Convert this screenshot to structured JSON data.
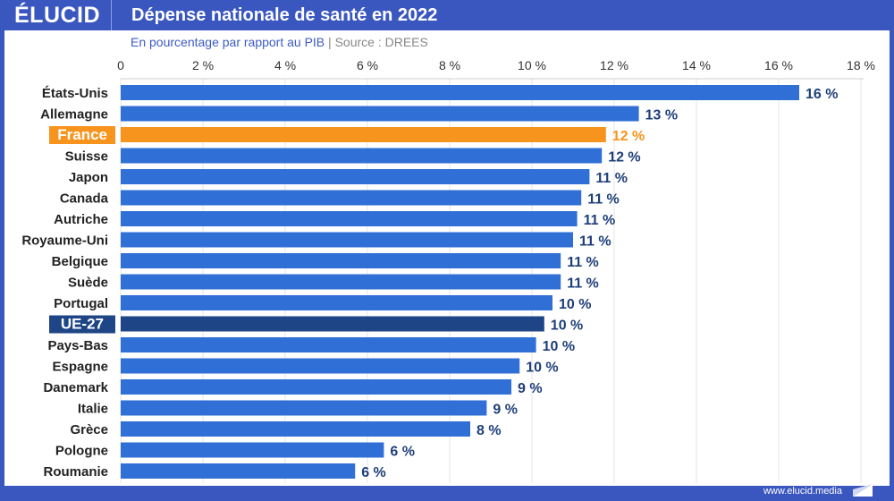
{
  "header": {
    "logo": "ÉLUCID",
    "title": "Dépense nationale de santé en 2022"
  },
  "subtitle": {
    "text": "En pourcentage par rapport au PIB",
    "separator": "|",
    "source": "Source : DREES"
  },
  "footer": {
    "url": "www.elucid.media"
  },
  "colors": {
    "frame": "#3a57c0",
    "bar": "#2f6fd6",
    "france": "#f7941d",
    "eu": "#1e4585",
    "label": "#1f3f7a"
  },
  "chart_data": {
    "type": "bar",
    "orientation": "horizontal",
    "title": "Dépense nationale de santé en 2022",
    "xlim": [
      0,
      18
    ],
    "grid": true,
    "xticks": [
      "0",
      "2 %",
      "4 %",
      "6 %",
      "8 %",
      "10 %",
      "12 %",
      "14 %",
      "16 %",
      "18 %"
    ],
    "categories": [
      "États-Unis",
      "Allemagne",
      "France",
      "Suisse",
      "Japon",
      "Canada",
      "Autriche",
      "Royaume-Uni",
      "Belgique",
      "Suède",
      "Portugal",
      "UE-27",
      "Pays-Bas",
      "Espagne",
      "Danemark",
      "Italie",
      "Grèce",
      "Pologne",
      "Roumanie"
    ],
    "values": [
      16.5,
      12.6,
      11.8,
      11.7,
      11.4,
      11.2,
      11.1,
      11.0,
      10.7,
      10.7,
      10.5,
      10.3,
      10.1,
      9.7,
      9.5,
      8.9,
      8.5,
      6.4,
      5.7
    ],
    "labels": [
      "16 %",
      "13 %",
      "12 %",
      "12 %",
      "11 %",
      "11 %",
      "11 %",
      "11 %",
      "11 %",
      "11 %",
      "10 %",
      "10 %",
      "10 %",
      "10 %",
      "9 %",
      "9 %",
      "8 %",
      "6 %",
      "6 %"
    ],
    "highlight": {
      "France": "france",
      "UE-27": "eu"
    }
  }
}
